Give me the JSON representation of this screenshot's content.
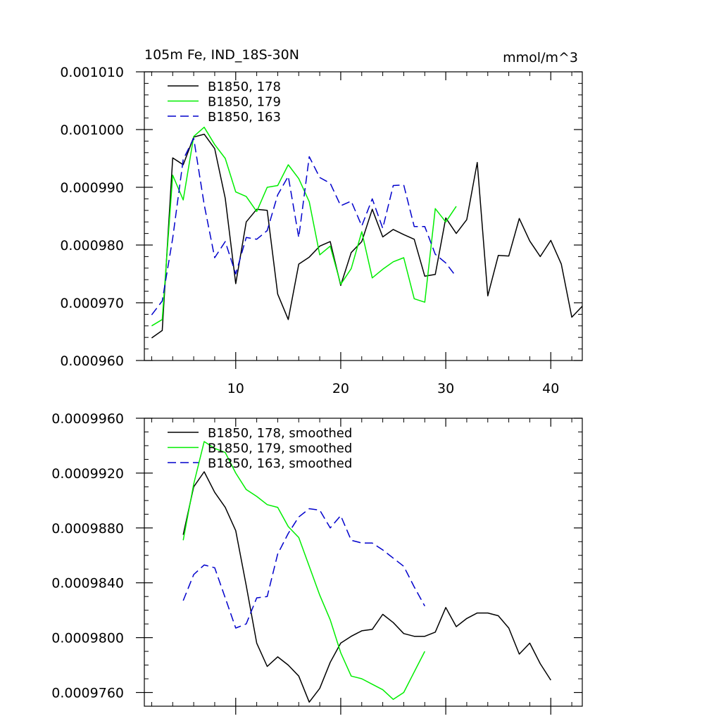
{
  "chart_data": [
    {
      "type": "line",
      "title": "105m Fe, IND_18S-30N",
      "units": "mmol/m^3",
      "xlabel": "",
      "ylabel": "",
      "xlim": [
        1.3,
        43.0
      ],
      "ylim": [
        0.00096,
        0.00101
      ],
      "x_ticks": [
        10,
        20,
        30,
        40
      ],
      "y_ticks": [
        0.00096,
        0.00097,
        0.00098,
        0.00099,
        0.001,
        0.00101
      ],
      "y_tick_labels": [
        "0.000960",
        "0.000970",
        "0.000980",
        "0.000990",
        "0.001000",
        "0.001010"
      ],
      "x_tick_labels": [
        "10",
        "20",
        "30",
        "40"
      ],
      "grid": false,
      "legend": "top-left",
      "series": [
        {
          "name": "B1850, 178",
          "color": "#000000",
          "dash": "solid",
          "x": [
            2,
            3,
            4,
            5,
            6,
            7,
            8,
            9,
            10,
            11,
            12,
            13,
            14,
            15,
            16,
            17,
            18,
            19,
            20,
            21,
            22,
            23,
            24,
            25,
            26,
            27,
            28,
            29,
            30,
            31,
            32,
            33,
            34,
            35,
            36,
            37,
            38,
            39,
            40,
            41,
            42,
            43
          ],
          "y": [
            0.0009639,
            0.0009652,
            0.0009951,
            0.0009939,
            0.0009987,
            0.0009992,
            0.0009967,
            0.0009881,
            0.0009733,
            0.000984,
            0.0009862,
            0.000986,
            0.0009715,
            0.0009671,
            0.0009767,
            0.0009779,
            0.0009798,
            0.0009806,
            0.000973,
            0.0009787,
            0.0009806,
            0.0009862,
            0.0009814,
            0.0009827,
            0.0009818,
            0.000981,
            0.0009746,
            0.0009749,
            0.0009847,
            0.000982,
            0.0009844,
            0.0009943,
            0.0009712,
            0.0009782,
            0.0009781,
            0.0009846,
            0.0009807,
            0.000978,
            0.0009808,
            0.0009767,
            0.0009675,
            0.0009694
          ]
        },
        {
          "name": "B1850, 179",
          "color": "#00ee00",
          "dash": "solid",
          "x": [
            2,
            3,
            4,
            5,
            6,
            7,
            8,
            9,
            10,
            11,
            12,
            13,
            14,
            15,
            16,
            17,
            18,
            19,
            20,
            21,
            22,
            23,
            24,
            25,
            26,
            27,
            28,
            29,
            30,
            31
          ],
          "y": [
            0.000966,
            0.0009671,
            0.0009921,
            0.0009878,
            0.0009988,
            0.0010004,
            0.0009974,
            0.000995,
            0.0009892,
            0.0009884,
            0.0009858,
            0.00099,
            0.0009903,
            0.0009939,
            0.0009915,
            0.0009875,
            0.0009783,
            0.0009798,
            0.0009732,
            0.0009759,
            0.0009823,
            0.0009743,
            0.0009758,
            0.0009771,
            0.0009778,
            0.0009707,
            0.0009701,
            0.0009863,
            0.000984,
            0.0009867
          ]
        },
        {
          "name": "B1850, 163",
          "color": "#0000cc",
          "dash": "dashed",
          "x": [
            2,
            3,
            4,
            5,
            6,
            7,
            8,
            9,
            10,
            11,
            12,
            13,
            14,
            15,
            16,
            17,
            18,
            19,
            20,
            21,
            22,
            23,
            24,
            25,
            26,
            27,
            28,
            29,
            30,
            31
          ],
          "y": [
            0.0009679,
            0.0009703,
            0.0009812,
            0.0009948,
            0.0009985,
            0.000987,
            0.0009778,
            0.0009806,
            0.000975,
            0.0009813,
            0.000981,
            0.0009825,
            0.0009887,
            0.0009919,
            0.0009813,
            0.0009953,
            0.0009917,
            0.0009907,
            0.0009868,
            0.0009876,
            0.0009833,
            0.000988,
            0.0009829,
            0.0009903,
            0.0009904,
            0.0009832,
            0.0009832,
            0.0009784,
            0.0009769,
            0.0009745
          ]
        }
      ]
    },
    {
      "type": "line",
      "title": "",
      "xlabel": "",
      "ylabel": "",
      "xlim": [
        1.3,
        43.0
      ],
      "ylim": [
        0.000975,
        0.000996
      ],
      "x_ticks": [
        10,
        20,
        30,
        40
      ],
      "y_ticks": [
        0.000976,
        0.00098,
        0.000984,
        0.000988,
        0.000992,
        0.000996
      ],
      "y_tick_labels": [
        "0.0009760",
        "0.0009800",
        "0.0009840",
        "0.0009880",
        "0.0009920",
        "0.0009960"
      ],
      "grid": false,
      "legend": "top-left",
      "series": [
        {
          "name": "B1850, 178, smoothed",
          "color": "#000000",
          "dash": "solid",
          "x": [
            5,
            6,
            7,
            8,
            9,
            10,
            11,
            12,
            13,
            14,
            15,
            16,
            17,
            18,
            19,
            20,
            21,
            22,
            23,
            24,
            25,
            26,
            27,
            28,
            29,
            30,
            31,
            32,
            33,
            34,
            35,
            36,
            37,
            38,
            39,
            40
          ],
          "y": [
            0.0009875,
            0.000991,
            0.0009921,
            0.0009906,
            0.0009895,
            0.0009878,
            0.0009838,
            0.0009796,
            0.0009779,
            0.0009786,
            0.000978,
            0.0009772,
            0.0009753,
            0.0009763,
            0.0009782,
            0.0009796,
            0.0009801,
            0.0009805,
            0.0009806,
            0.0009817,
            0.0009811,
            0.0009803,
            0.0009801,
            0.0009801,
            0.0009804,
            0.0009822,
            0.0009808,
            0.0009814,
            0.0009818,
            0.0009818,
            0.0009816,
            0.0009807,
            0.0009788,
            0.0009796,
            0.0009781,
            0.0009769
          ]
        },
        {
          "name": "B1850, 179, smoothed",
          "color": "#00ee00",
          "dash": "solid",
          "x": [
            5,
            6,
            7,
            8,
            9,
            10,
            11,
            12,
            13,
            14,
            15,
            16,
            17,
            18,
            19,
            20,
            21,
            22,
            23,
            24,
            25,
            26,
            27,
            28
          ],
          "y": [
            0.0009871,
            0.0009912,
            0.0009943,
            0.0009938,
            0.0009935,
            0.000992,
            0.0009908,
            0.0009903,
            0.0009897,
            0.0009895,
            0.0009881,
            0.0009873,
            0.0009852,
            0.0009831,
            0.0009813,
            0.0009789,
            0.0009772,
            0.000977,
            0.0009766,
            0.0009762,
            0.0009755,
            0.000976,
            0.0009775,
            0.000979
          ]
        },
        {
          "name": "B1850, 163, smoothed",
          "color": "#0000cc",
          "dash": "dashed",
          "x": [
            5,
            6,
            7,
            8,
            9,
            10,
            11,
            12,
            13,
            14,
            15,
            16,
            17,
            18,
            19,
            20,
            21,
            22,
            23,
            24,
            25,
            26,
            27,
            28
          ],
          "y": [
            0.0009827,
            0.0009846,
            0.0009853,
            0.0009851,
            0.0009829,
            0.0009807,
            0.000981,
            0.0009829,
            0.000983,
            0.0009861,
            0.0009876,
            0.0009888,
            0.0009894,
            0.0009893,
            0.000988,
            0.0009889,
            0.0009871,
            0.0009869,
            0.0009869,
            0.0009864,
            0.0009858,
            0.0009852,
            0.0009837,
            0.0009823
          ]
        }
      ]
    }
  ]
}
